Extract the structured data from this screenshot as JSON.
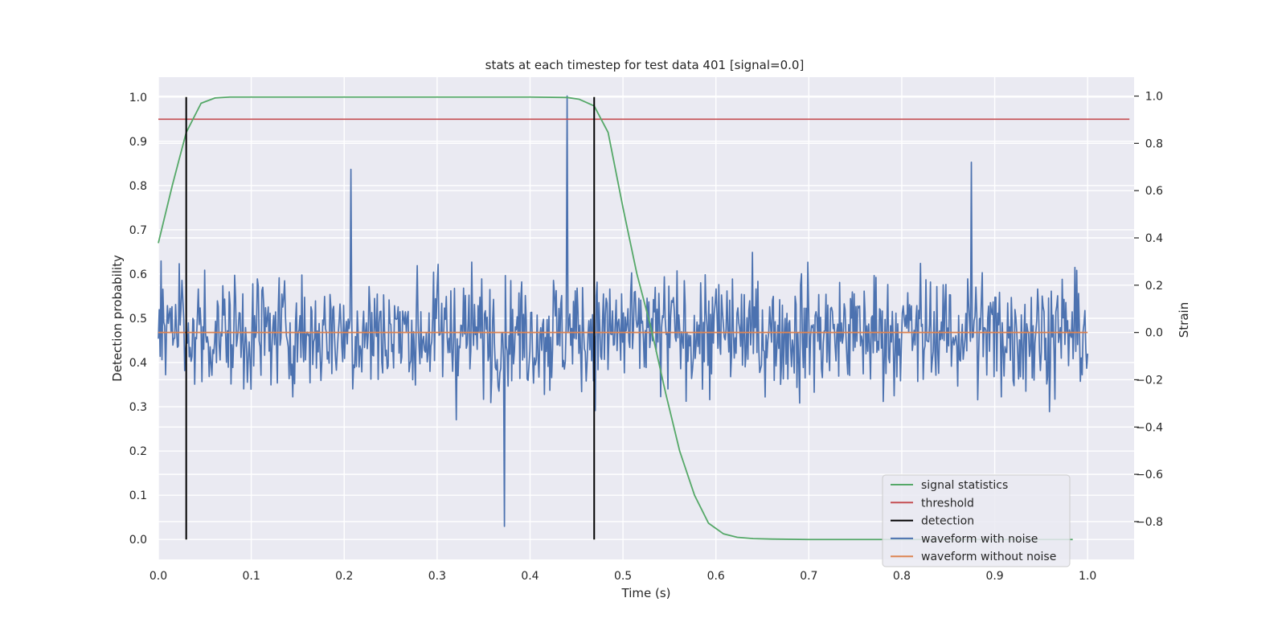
{
  "chart_data": {
    "type": "line",
    "title": "stats at each timestep for test data 401 [signal=0.0]",
    "xlabel": "Time (s)",
    "ylabel_left": "Detection probability",
    "ylabel_right": "Strain",
    "xlim": [
      0.0,
      1.05
    ],
    "ylim_left": [
      -0.045,
      1.045
    ],
    "ylim_right": [
      -0.96,
      1.08
    ],
    "x_ticks": [
      "0.0",
      "0.1",
      "0.2",
      "0.3",
      "0.4",
      "0.5",
      "0.6",
      "0.7",
      "0.8",
      "0.9",
      "1.0"
    ],
    "y_left_ticks": [
      "0.0",
      "0.1",
      "0.2",
      "0.3",
      "0.4",
      "0.5",
      "0.6",
      "0.7",
      "0.8",
      "0.9",
      "1.0"
    ],
    "y_right_ticks": [
      "−0.8",
      "−0.6",
      "−0.4",
      "−0.2",
      "0.0",
      "0.2",
      "0.4",
      "0.6",
      "0.8",
      "1.0"
    ],
    "grid": true,
    "legend_position": "lower-right",
    "series": [
      {
        "name": "signal statistics",
        "axis": "left",
        "color": "#55a868",
        "x": [
          0.0,
          0.015,
          0.03,
          0.046,
          0.061,
          0.077,
          0.092,
          0.12,
          0.2,
          0.3,
          0.4,
          0.44,
          0.453,
          0.469,
          0.484,
          0.5,
          0.515,
          0.53,
          0.546,
          0.561,
          0.577,
          0.592,
          0.608,
          0.623,
          0.64,
          0.66,
          0.7,
          0.8,
          0.9,
          0.984
        ],
        "y": [
          0.67,
          0.8,
          0.92,
          0.986,
          0.998,
          1.0,
          1.0,
          1.0,
          1.0,
          1.0,
          1.0,
          0.999,
          0.995,
          0.98,
          0.92,
          0.75,
          0.6,
          0.48,
          0.33,
          0.2,
          0.1,
          0.037,
          0.013,
          0.005,
          0.002,
          0.001,
          0.0,
          0.0,
          0.0,
          0.0
        ]
      },
      {
        "name": "threshold",
        "axis": "left",
        "color": "#c44e52",
        "x": [
          0.0,
          1.045
        ],
        "y": [
          0.95,
          0.95
        ]
      },
      {
        "name": "detection",
        "axis": "left",
        "color": "#000000",
        "segments": [
          {
            "x": 0.03,
            "y0": 0.0,
            "y1": 1.0
          },
          {
            "x": 0.469,
            "y0": 0.0,
            "y1": 1.0
          }
        ]
      },
      {
        "name": "waveform with noise",
        "axis": "right",
        "color": "#4c72b0",
        "x_start": 0.0,
        "x_end": 1.0,
        "noise_std": 0.2,
        "points": 1024,
        "seed": 401,
        "y_range": [
          -0.85,
          1.0
        ],
        "y_highlights": [
          {
            "x": 0.44,
            "y": 1.0
          },
          {
            "x": 0.372,
            "y": -0.82
          },
          {
            "x": 0.875,
            "y": 0.72
          },
          {
            "x": 0.207,
            "y": 0.69
          }
        ]
      },
      {
        "name": "waveform without noise",
        "axis": "right",
        "color": "#dd8452",
        "x": [
          0.0,
          1.0
        ],
        "y": [
          0.0,
          0.0
        ]
      }
    ],
    "legend": [
      "signal statistics",
      "threshold",
      "detection",
      "waveform with noise",
      "waveform without noise"
    ]
  }
}
